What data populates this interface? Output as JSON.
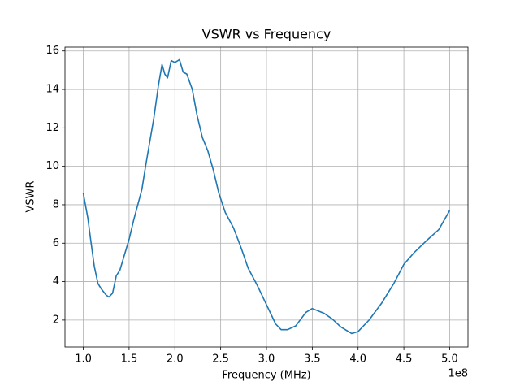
{
  "chart_data": {
    "type": "line",
    "title": "VSWR vs Frequency",
    "x_label": "Frequency (MHz)",
    "y_label": "VSWR",
    "x_offset_label": "1e8",
    "x": [
      100000000,
      105000000,
      108000000,
      112000000,
      116000000,
      120000000,
      125000000,
      128000000,
      132000000,
      136000000,
      140000000,
      150000000,
      155000000,
      164000000,
      168000000,
      177000000,
      182000000,
      186000000,
      189000000,
      192000000,
      196000000,
      200000000,
      205000000,
      209000000,
      213000000,
      219000000,
      224000000,
      230000000,
      236000000,
      242000000,
      248000000,
      255000000,
      264000000,
      272000000,
      280000000,
      290000000,
      300000000,
      310000000,
      316000000,
      323000000,
      332000000,
      343000000,
      350000000,
      363000000,
      372000000,
      381000000,
      393000000,
      400000000,
      412000000,
      426000000,
      439000000,
      450000000,
      461000000,
      474000000,
      488000000,
      500000000
    ],
    "series": [
      {
        "name": "VSWR",
        "color": "#1f77b4",
        "values": [
          8.6,
          7.3,
          6.2,
          4.8,
          3.9,
          3.6,
          3.3,
          3.2,
          3.4,
          4.3,
          4.6,
          6.2,
          7.2,
          8.8,
          10.0,
          12.5,
          14.2,
          15.3,
          14.8,
          14.6,
          15.5,
          15.4,
          15.55,
          14.9,
          14.8,
          14.0,
          12.7,
          11.5,
          10.8,
          9.8,
          8.6,
          7.6,
          6.8,
          5.8,
          4.7,
          3.8,
          2.8,
          1.8,
          1.5,
          1.5,
          1.7,
          2.4,
          2.6,
          2.35,
          2.05,
          1.65,
          1.3,
          1.4,
          2.0,
          2.9,
          3.9,
          4.9,
          5.5,
          6.1,
          6.7,
          7.7
        ]
      }
    ],
    "xlim": [
      80000000,
      520000000
    ],
    "xticks": [
      {
        "value": 100000000,
        "label": "1.0"
      },
      {
        "value": 150000000,
        "label": "1.5"
      },
      {
        "value": 200000000,
        "label": "2.0"
      },
      {
        "value": 250000000,
        "label": "2.5"
      },
      {
        "value": 300000000,
        "label": "3.0"
      },
      {
        "value": 350000000,
        "label": "3.5"
      },
      {
        "value": 400000000,
        "label": "4.0"
      },
      {
        "value": 450000000,
        "label": "4.5"
      },
      {
        "value": 500000000,
        "label": "5.0"
      }
    ],
    "ylim": [
      0.6,
      16.2
    ],
    "yticks": [
      2,
      4,
      6,
      8,
      10,
      12,
      14,
      16
    ],
    "grid": true
  }
}
